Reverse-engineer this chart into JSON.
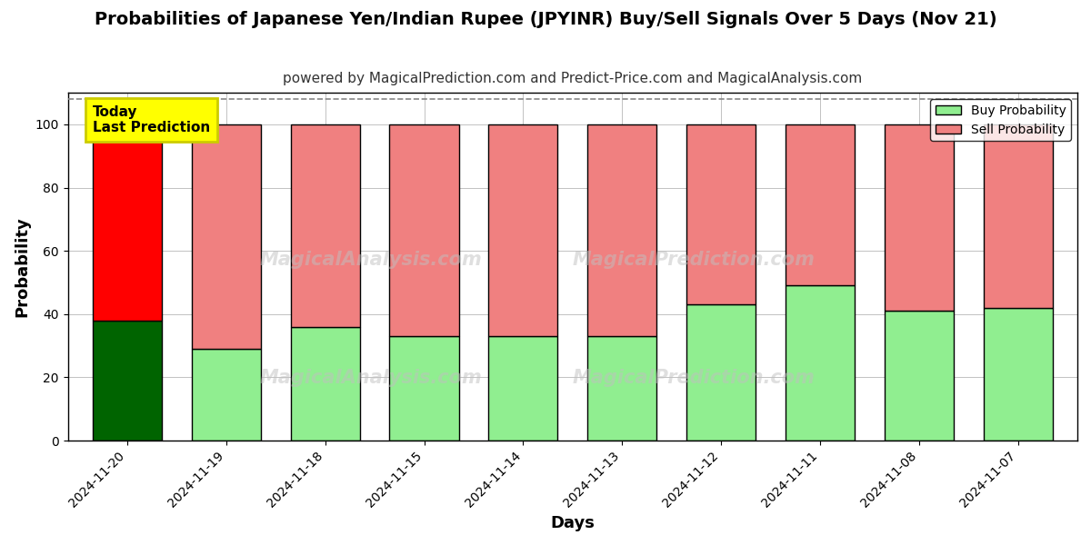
{
  "title": "Probabilities of Japanese Yen/Indian Rupee (JPYINR) Buy/Sell Signals Over 5 Days (Nov 21)",
  "subtitle": "powered by MagicalPrediction.com and Predict-Price.com and MagicalAnalysis.com",
  "xlabel": "Days",
  "ylabel": "Probability",
  "categories": [
    "2024-11-20",
    "2024-11-19",
    "2024-11-18",
    "2024-11-15",
    "2024-11-14",
    "2024-11-13",
    "2024-11-12",
    "2024-11-11",
    "2024-11-08",
    "2024-11-07"
  ],
  "buy_values": [
    38,
    29,
    36,
    33,
    33,
    33,
    43,
    49,
    41,
    42
  ],
  "sell_values": [
    62,
    71,
    64,
    67,
    67,
    67,
    57,
    51,
    59,
    58
  ],
  "today_index": 0,
  "buy_color_today": "#006400",
  "sell_color_today": "#ff0000",
  "buy_color_other": "#90ee90",
  "sell_color_other": "#f08080",
  "bar_edge_color": "#000000",
  "bar_linewidth": 1.0,
  "ylim": [
    0,
    110
  ],
  "yticks": [
    0,
    20,
    40,
    60,
    80,
    100
  ],
  "grid_color": "#aaaaaa",
  "grid_linestyle": "-",
  "grid_linewidth": 0.5,
  "dashed_line_y": 108,
  "dashed_line_color": "#888888",
  "dashed_linestyle": "--",
  "annotation_text": "Today\nLast Prediction",
  "annotation_bg_color": "#ffff00",
  "annotation_border_color": "#cccc00",
  "legend_buy_label": "Buy Probability",
  "legend_sell_label": "Sell Probability",
  "title_fontsize": 14,
  "subtitle_fontsize": 11,
  "axis_label_fontsize": 13,
  "tick_fontsize": 10,
  "legend_fontsize": 10,
  "bar_width": 0.7,
  "fig_width": 12,
  "fig_height": 6,
  "fig_dpi": 100,
  "background_color": "#ffffff"
}
